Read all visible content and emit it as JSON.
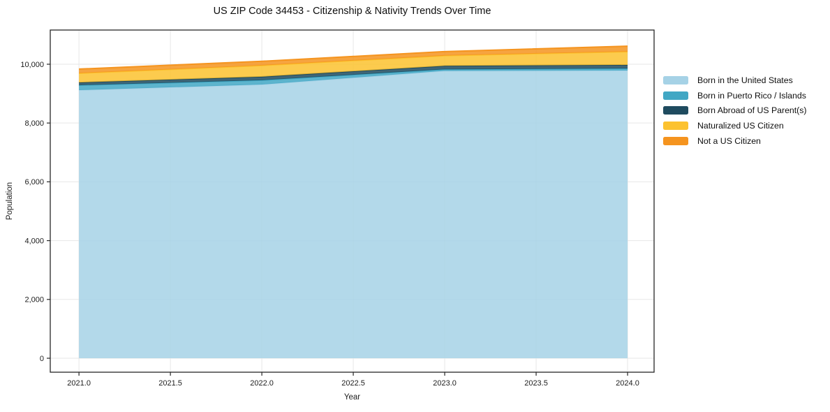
{
  "chart_data": {
    "type": "area",
    "stacked": true,
    "title": "US ZIP Code 34453 - Citizenship & Nativity Trends Over Time",
    "xlabel": "Year",
    "ylabel": "Population",
    "legend_position": "right-outside",
    "grid": true,
    "x": [
      2021,
      2022,
      2023,
      2024
    ],
    "x_ticks": [
      2021.0,
      2021.5,
      2022.0,
      2022.5,
      2023.0,
      2023.5,
      2024.0
    ],
    "x_tick_labels": [
      "2021.0",
      "2021.5",
      "2022.0",
      "2022.5",
      "2023.0",
      "2023.5",
      "2024.0"
    ],
    "y_ticks": [
      0,
      2000,
      4000,
      6000,
      8000,
      10000
    ],
    "y_tick_labels": [
      "0",
      "2,000",
      "4,000",
      "6,000",
      "8,000",
      "10,000"
    ],
    "xlim": [
      2020.843,
      2024.145
    ],
    "ylim": [
      -475,
      11163
    ],
    "series": [
      {
        "name": "Born in the United States",
        "color": "#a6d2e6",
        "values": [
          9120,
          9310,
          9775,
          9785
        ]
      },
      {
        "name": "Born in Puerto Rico / Islands",
        "color": "#41a7c4",
        "values": [
          165,
          145,
          50,
          70
        ]
      },
      {
        "name": "Born Abroad of US Parent(s)",
        "color": "#1f4b5f",
        "values": [
          95,
          120,
          120,
          120
        ]
      },
      {
        "name": "Naturalized US Citizen",
        "color": "#fcc22f",
        "values": [
          310,
          380,
          345,
          450
        ]
      },
      {
        "name": "Not a US Citizen",
        "color": "#f5941f",
        "values": [
          145,
          145,
          140,
          190
        ]
      }
    ]
  }
}
